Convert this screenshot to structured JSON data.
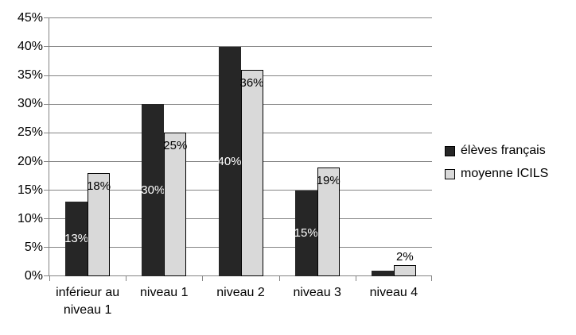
{
  "chart_data": {
    "type": "bar",
    "title": "",
    "xlabel": "",
    "ylabel": "",
    "categories": [
      "inférieur au niveau 1",
      "niveau 1",
      "niveau 2",
      "niveau 3",
      "niveau 4"
    ],
    "series": [
      {
        "name": "élèves français",
        "color": "#262626",
        "label_color": "#ffffff",
        "label_position": "center",
        "values": [
          13,
          30,
          40,
          15,
          1
        ],
        "labels": [
          "13%",
          "30%",
          "40%",
          "15%",
          null
        ]
      },
      {
        "name": "moyenne ICILS",
        "color": "#d9d9d9",
        "border_color": "#000000",
        "label_color": "#000000",
        "label_position": "inside-top",
        "values": [
          18,
          25,
          36,
          19,
          2
        ],
        "labels": [
          "18%",
          "25%",
          "36%",
          "19%",
          "2%"
        ]
      }
    ],
    "ylim": [
      0,
      45
    ],
    "ytick_step": 5,
    "ytick_labels": [
      "0%",
      "5%",
      "10%",
      "15%",
      "20%",
      "25%",
      "30%",
      "35%",
      "40%",
      "45%"
    ],
    "grid": true,
    "gridline_color": "#848484",
    "legend_position": "right"
  }
}
